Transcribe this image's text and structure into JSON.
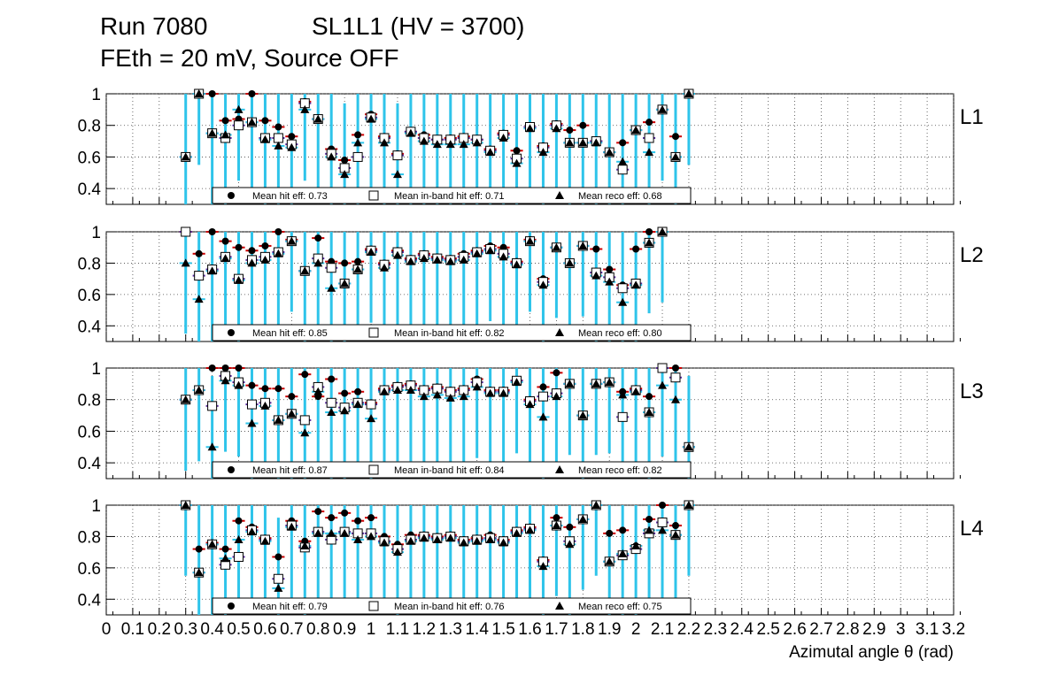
{
  "header": {
    "run": "Run 7080",
    "chamber": "SL1L1 (HV = 3700)",
    "conditions": "FEth = 20 mV, Source OFF"
  },
  "chart_data": {
    "type": "scatter",
    "xlabel": "Azimutal angle θ (rad)",
    "xlim": [
      0,
      3.2
    ],
    "ylim": [
      0.3,
      1.0
    ],
    "y_ticks": [
      "0.4",
      "0.6",
      "0.8",
      "1"
    ],
    "x_ticks": [
      "0",
      "0.1",
      "0.2",
      "0.3",
      "0.4",
      "0.5",
      "0.6",
      "0.7",
      "0.8",
      "0.9",
      "1",
      "1.1",
      "1.2",
      "1.3",
      "1.4",
      "1.5",
      "1.6",
      "1.7",
      "1.8",
      "1.9",
      "2",
      "2.1",
      "2.2",
      "2.3",
      "2.4",
      "2.5",
      "2.6",
      "2.7",
      "2.8",
      "2.9",
      "3",
      "3.1",
      "3.2"
    ],
    "x_tick_labels": [
      "0",
      "0.1",
      "0.2",
      "0.3",
      "0.4",
      "0.5",
      "0.6",
      "0.7",
      "0.8",
      "0.9",
      "1",
      "1.1",
      "1.2",
      "1.3",
      "1.4",
      "1.5",
      "1.6",
      "1.7",
      "1.8",
      "1.9",
      "2",
      "2.1",
      "2.2",
      "2.3",
      "2.4",
      "2.5",
      "2.6",
      "2.7",
      "2.8",
      "2.9",
      "3",
      "3.1",
      "3.2"
    ],
    "grid": true,
    "bin_width": 0.0524,
    "x": [
      0.3,
      0.35,
      0.4,
      0.45,
      0.5,
      0.55,
      0.6,
      0.65,
      0.7,
      0.75,
      0.8,
      0.85,
      0.9,
      0.95,
      1.0,
      1.05,
      1.1,
      1.15,
      1.2,
      1.25,
      1.3,
      1.35,
      1.4,
      1.45,
      1.5,
      1.55,
      1.6,
      1.65,
      1.7,
      1.75,
      1.8,
      1.85,
      1.9,
      1.95,
      2.0,
      2.05,
      2.1,
      2.15,
      2.2,
      2.25,
      2.3,
      2.35,
      2.4,
      2.45,
      2.5,
      2.55,
      2.6
    ],
    "legend": {
      "hit": "Mean hit  eff:",
      "inband": "Mean in-band hit eff:",
      "reco": "Mean reco eff:"
    },
    "panels": [
      {
        "label": "L1",
        "mean_hit": "0.73",
        "mean_inband": "0.71",
        "mean_reco": "0.68",
        "hit": [
          0.6,
          1.0,
          1.0,
          0.83,
          0.84,
          1.0,
          0.83,
          0.79,
          0.73,
          0.95,
          0.84,
          0.65,
          0.58,
          0.74,
          0.87,
          0.73,
          0.62,
          0.76,
          0.74,
          0.71,
          0.72,
          0.73,
          0.71,
          0.65,
          0.75,
          0.64,
          0.79,
          0.67,
          0.81,
          0.77,
          0.8,
          0.7,
          0.63,
          0.69,
          0.77,
          0.82,
          0.9,
          0.73,
          1.0,
          null,
          null,
          null,
          null,
          null,
          null,
          null,
          null
        ],
        "inband": [
          0.6,
          1.0,
          0.75,
          0.72,
          0.8,
          0.82,
          0.72,
          0.72,
          0.68,
          0.94,
          0.84,
          0.62,
          0.53,
          0.6,
          0.85,
          0.72,
          0.61,
          0.76,
          0.72,
          0.71,
          0.71,
          0.72,
          0.71,
          0.64,
          0.74,
          0.59,
          0.79,
          0.66,
          0.8,
          0.69,
          0.69,
          0.7,
          0.63,
          0.52,
          0.77,
          0.72,
          0.9,
          0.6,
          1.0,
          null,
          null,
          null,
          null,
          null,
          null,
          null,
          null
        ],
        "reco": [
          0.6,
          1.0,
          0.75,
          0.74,
          0.9,
          0.82,
          0.71,
          0.67,
          0.66,
          0.9,
          0.84,
          0.6,
          0.49,
          0.69,
          0.84,
          0.69,
          0.49,
          0.75,
          0.7,
          0.68,
          0.68,
          0.68,
          0.69,
          0.63,
          0.72,
          0.56,
          0.78,
          0.63,
          0.78,
          0.69,
          0.69,
          0.69,
          0.63,
          0.57,
          0.77,
          0.63,
          0.9,
          0.6,
          1.0,
          null,
          null,
          null,
          null,
          null,
          null,
          null,
          null
        ]
      },
      {
        "label": "L2",
        "mean_hit": "0.85",
        "mean_inband": "0.82",
        "mean_reco": "0.80",
        "hit": [
          1.0,
          0.86,
          1.0,
          0.94,
          0.9,
          0.88,
          0.91,
          1.0,
          0.95,
          0.75,
          0.96,
          0.81,
          0.8,
          0.81,
          0.89,
          0.8,
          0.88,
          0.83,
          0.86,
          0.84,
          0.83,
          0.86,
          0.88,
          0.91,
          0.9,
          0.81,
          0.95,
          0.7,
          0.9,
          0.8,
          0.91,
          0.89,
          0.76,
          0.66,
          0.89,
          1.0,
          1.0,
          null,
          null,
          null,
          null,
          null,
          null,
          null,
          null,
          null,
          null
        ],
        "inband": [
          1.0,
          0.72,
          0.76,
          0.84,
          0.7,
          0.82,
          0.84,
          0.87,
          0.94,
          0.75,
          0.83,
          0.77,
          0.67,
          0.76,
          0.88,
          0.79,
          0.87,
          0.82,
          0.85,
          0.83,
          0.82,
          0.84,
          0.87,
          0.89,
          0.86,
          0.8,
          0.94,
          0.68,
          0.9,
          0.8,
          0.91,
          0.74,
          0.71,
          0.64,
          0.67,
          0.93,
          1.0,
          null,
          null,
          null,
          null,
          null,
          null,
          null,
          null,
          null,
          null
        ],
        "reco": [
          0.8,
          0.57,
          0.75,
          0.83,
          0.69,
          0.8,
          0.82,
          0.86,
          0.94,
          0.75,
          0.8,
          0.64,
          0.67,
          0.76,
          0.87,
          0.77,
          0.85,
          0.81,
          0.83,
          0.82,
          0.81,
          0.82,
          0.86,
          0.88,
          0.84,
          0.79,
          0.94,
          0.66,
          0.9,
          0.8,
          0.91,
          0.72,
          0.68,
          0.55,
          0.66,
          0.93,
          1.0,
          null,
          null,
          null,
          null,
          null,
          null,
          null,
          null,
          null,
          null
        ]
      },
      {
        "label": "L3",
        "mean_hit": "0.87",
        "mean_inband": "0.84",
        "mean_reco": "0.82",
        "hit": [
          0.8,
          0.86,
          1.0,
          1.0,
          1.0,
          0.89,
          0.87,
          0.87,
          0.82,
          0.96,
          0.82,
          0.93,
          0.84,
          0.85,
          0.78,
          0.87,
          0.89,
          0.9,
          0.87,
          0.88,
          0.86,
          0.87,
          0.93,
          0.86,
          0.86,
          0.92,
          0.8,
          0.88,
          0.97,
          0.9,
          0.7,
          0.9,
          0.91,
          0.85,
          0.87,
          0.82,
          1.0,
          1.0,
          0.5,
          null,
          null,
          null,
          null,
          null,
          null,
          null,
          null
        ],
        "inband": [
          0.8,
          0.86,
          0.76,
          0.95,
          0.91,
          0.77,
          0.78,
          0.67,
          0.71,
          0.67,
          0.88,
          0.78,
          0.75,
          0.78,
          0.77,
          0.86,
          0.88,
          0.89,
          0.86,
          0.87,
          0.85,
          0.86,
          0.91,
          0.85,
          0.85,
          0.92,
          0.79,
          0.82,
          0.84,
          0.9,
          0.7,
          0.9,
          0.91,
          0.69,
          0.86,
          0.72,
          1.0,
          0.94,
          0.5,
          null,
          null,
          null,
          null,
          null,
          null,
          null,
          null
        ],
        "reco": [
          0.8,
          0.86,
          0.5,
          0.92,
          0.89,
          0.65,
          0.76,
          0.67,
          0.71,
          0.59,
          0.85,
          0.72,
          0.73,
          0.77,
          0.68,
          0.85,
          0.86,
          0.86,
          0.82,
          0.83,
          0.81,
          0.82,
          0.88,
          0.84,
          0.84,
          0.91,
          0.77,
          0.69,
          0.82,
          0.9,
          0.7,
          0.9,
          0.91,
          0.83,
          0.85,
          0.72,
          0.89,
          0.8,
          0.5,
          null,
          null,
          null,
          null,
          null,
          null,
          null,
          null
        ]
      },
      {
        "label": "L4",
        "mean_hit": "0.79",
        "mean_inband": "0.76",
        "mean_reco": "0.75",
        "hit": [
          1.0,
          0.72,
          0.76,
          0.72,
          0.9,
          0.86,
          0.79,
          0.67,
          0.9,
          0.77,
          0.96,
          0.92,
          0.95,
          0.9,
          0.92,
          0.8,
          0.75,
          0.81,
          0.81,
          0.8,
          0.81,
          0.78,
          0.79,
          0.81,
          0.78,
          0.84,
          0.86,
          0.65,
          0.92,
          0.86,
          0.91,
          1.0,
          0.82,
          0.84,
          0.74,
          0.91,
          1.0,
          0.87,
          1.0,
          null,
          null,
          null,
          null,
          null,
          null,
          null,
          null
        ],
        "inband": [
          1.0,
          0.57,
          0.75,
          0.62,
          0.67,
          0.84,
          0.78,
          0.53,
          0.87,
          0.73,
          0.83,
          0.78,
          0.83,
          0.82,
          0.82,
          0.77,
          0.72,
          0.78,
          0.8,
          0.79,
          0.8,
          0.77,
          0.78,
          0.79,
          0.77,
          0.83,
          0.85,
          0.64,
          0.87,
          0.77,
          0.91,
          1.0,
          0.64,
          0.68,
          0.72,
          0.82,
          0.89,
          0.81,
          1.0,
          null,
          null,
          null,
          null,
          null,
          null,
          null,
          null
        ],
        "reco": [
          1.0,
          0.57,
          0.75,
          0.66,
          0.78,
          0.83,
          0.77,
          0.47,
          0.86,
          0.74,
          0.82,
          0.82,
          0.82,
          0.78,
          0.8,
          0.76,
          0.7,
          0.77,
          0.79,
          0.78,
          0.79,
          0.76,
          0.77,
          0.78,
          0.76,
          0.82,
          0.84,
          0.61,
          0.87,
          0.75,
          0.91,
          1.0,
          0.64,
          0.69,
          0.74,
          0.84,
          0.84,
          0.81,
          1.0,
          null,
          null,
          null,
          null,
          null,
          null,
          null,
          null
        ]
      }
    ]
  }
}
